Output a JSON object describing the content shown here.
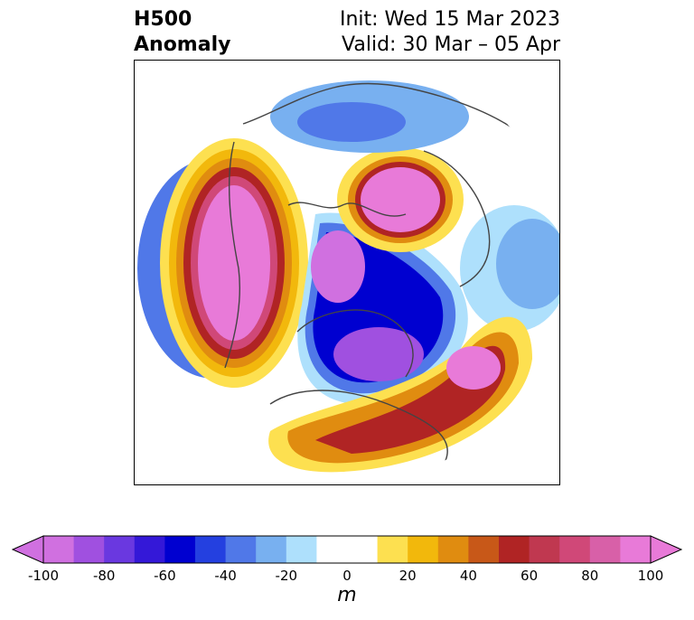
{
  "title": {
    "left_line1": "H500",
    "left_line2": "Anomaly",
    "right_line1": "Init: Wed 15 Mar 2023",
    "right_line2": "Valid: 30 Mar – 05 Apr"
  },
  "colorbar": {
    "unit": "m",
    "tick_labels": [
      "-100",
      "-80",
      "-60",
      "-40",
      "-20",
      "0",
      "20",
      "40",
      "60",
      "80",
      "100"
    ],
    "colors": [
      "#d070e0",
      "#a050e0",
      "#6a38e0",
      "#3418d8",
      "#0000d0",
      "#2440e0",
      "#5078e8",
      "#78b0f0",
      "#aee0fc",
      "#ffffff",
      "#ffffff",
      "#fde050",
      "#f2b80c",
      "#e08c10",
      "#c85818",
      "#b02424",
      "#c03850",
      "#d04878",
      "#d860a8",
      "#e87ad8"
    ]
  },
  "map": {
    "projection": "north-polar-stereographic",
    "field": "500 hPa geopotential height anomaly"
  }
}
